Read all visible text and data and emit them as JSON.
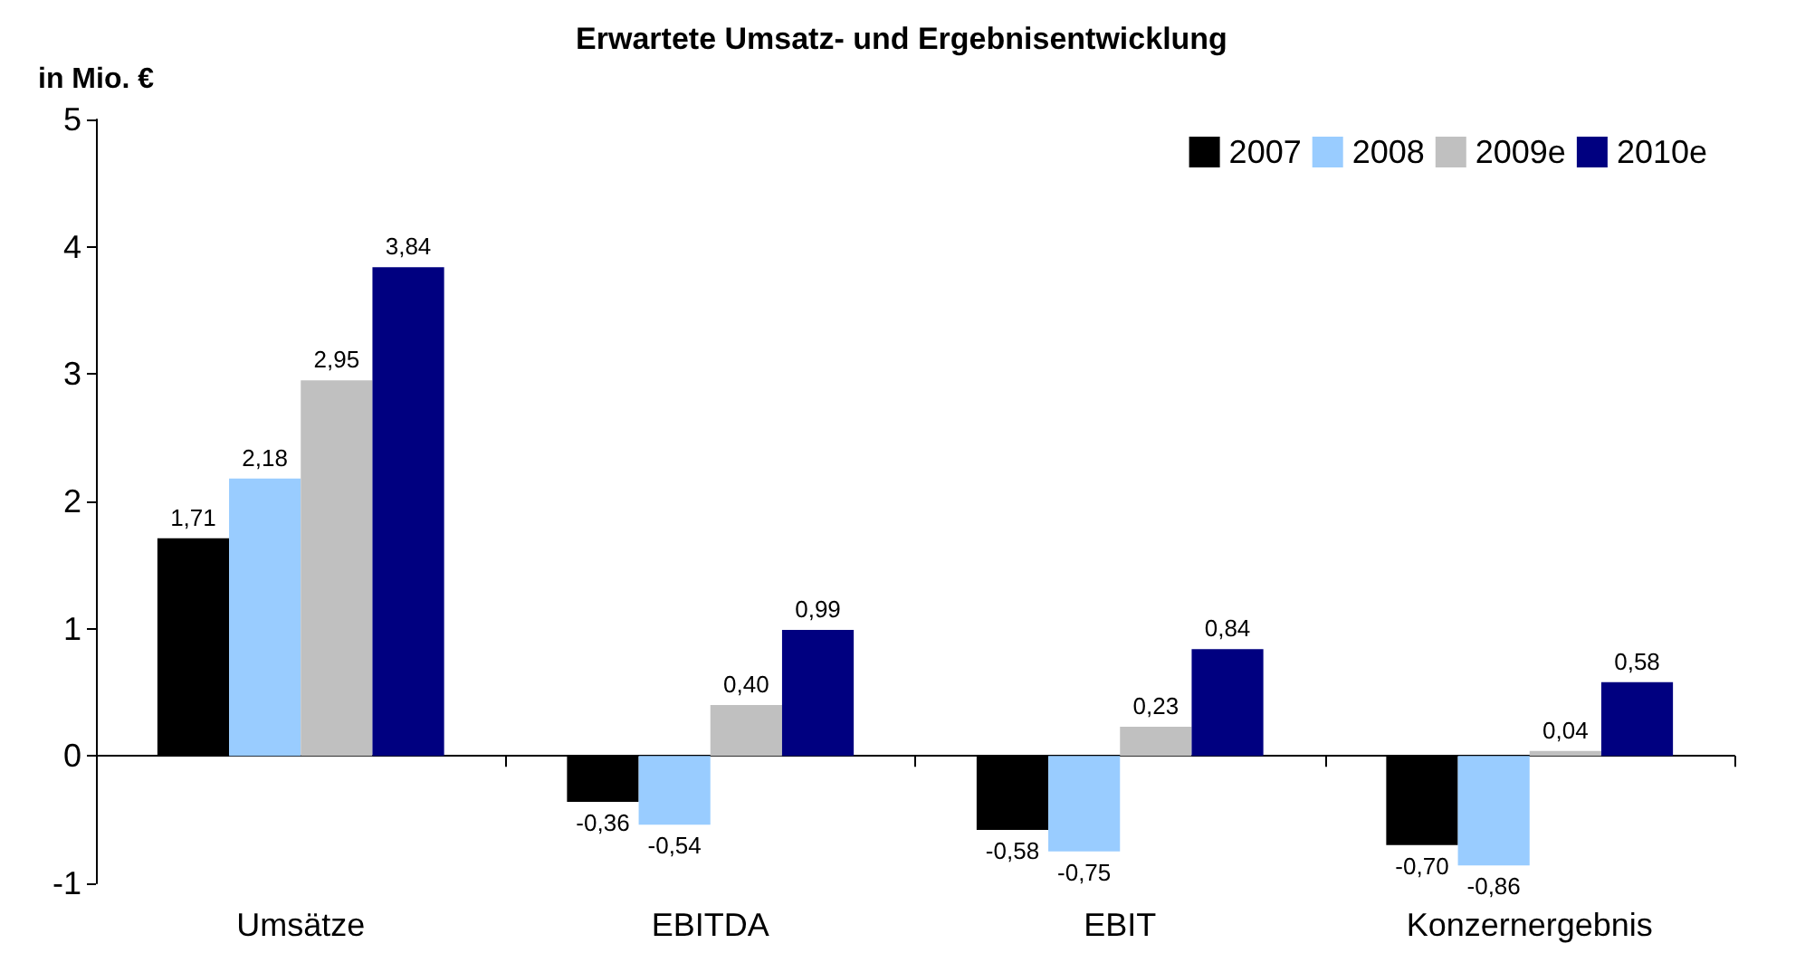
{
  "chart_data": {
    "type": "bar",
    "title": "Erwartete Umsatz- und Ergebnisentwicklung",
    "ylabel": "in Mio. €",
    "categories": [
      "Umsätze",
      "EBITDA",
      "EBIT",
      "Konzernergebnis"
    ],
    "series": [
      {
        "name": "2007",
        "color": "#000000",
        "values": [
          1.71,
          -0.36,
          -0.58,
          -0.7
        ],
        "value_labels": [
          "1,71",
          "-0,36",
          "-0,58",
          "-0,70"
        ]
      },
      {
        "name": "2008",
        "color": "#99ccff",
        "values": [
          2.18,
          -0.54,
          -0.75,
          -0.86
        ],
        "value_labels": [
          "2,18",
          "-0,54",
          "-0,75",
          "-0,86"
        ]
      },
      {
        "name": "2009e",
        "color": "#c0c0c0",
        "values": [
          2.95,
          0.4,
          0.23,
          0.04
        ],
        "value_labels": [
          "2,95",
          "0,40",
          "0,23",
          "0,04"
        ]
      },
      {
        "name": "2010e",
        "color": "#000080",
        "values": [
          3.84,
          0.99,
          0.84,
          0.58
        ],
        "value_labels": [
          "3,84",
          "0,99",
          "0,84",
          "0,58"
        ]
      }
    ],
    "ylim": [
      -1,
      5
    ],
    "yticks": [
      -1,
      0,
      1,
      2,
      3,
      4,
      5
    ],
    "legend": "top right"
  }
}
